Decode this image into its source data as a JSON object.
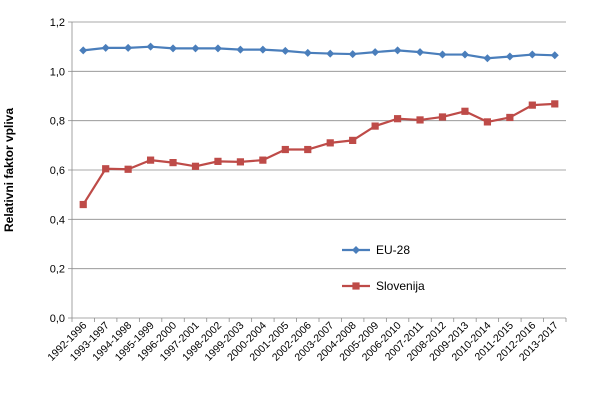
{
  "chart_data": {
    "type": "line",
    "ylabel": "Relativni faktor vpliva",
    "ylim": [
      0,
      1.2
    ],
    "yticks": [
      "0,0",
      "0,2",
      "0,4",
      "0,6",
      "0,8",
      "1,0",
      "1,2"
    ],
    "ytick_values": [
      0,
      0.2,
      0.4,
      0.6,
      0.8,
      1.0,
      1.2
    ],
    "categories": [
      "1992-1996",
      "1993-1997",
      "1994-1998",
      "1995-1999",
      "1996-2000",
      "1997-2001",
      "1998-2002",
      "1999-2003",
      "2000-2004",
      "2001-2005",
      "2002-2006",
      "2003-2007",
      "2004-2008",
      "2005-2009",
      "2006-2010",
      "2007-2011",
      "2008-2012",
      "2009-2013",
      "2010-2014",
      "2011-2015",
      "2012-2016",
      "2013-2017"
    ],
    "grid": "horizontal",
    "legend_position": "right-inside",
    "series": [
      {
        "name": "EU-28",
        "color": "#4a7ebb",
        "marker": "diamond",
        "values": [
          1.085,
          1.095,
          1.095,
          1.1,
          1.093,
          1.093,
          1.093,
          1.088,
          1.088,
          1.083,
          1.075,
          1.072,
          1.07,
          1.078,
          1.085,
          1.078,
          1.068,
          1.068,
          1.053,
          1.06,
          1.068,
          1.065
        ]
      },
      {
        "name": "Slovenija",
        "color": "#be4b48",
        "marker": "square",
        "values": [
          0.46,
          0.605,
          0.603,
          0.64,
          0.63,
          0.615,
          0.635,
          0.633,
          0.64,
          0.683,
          0.683,
          0.71,
          0.72,
          0.778,
          0.808,
          0.803,
          0.815,
          0.838,
          0.795,
          0.813,
          0.863,
          0.868
        ]
      }
    ]
  }
}
